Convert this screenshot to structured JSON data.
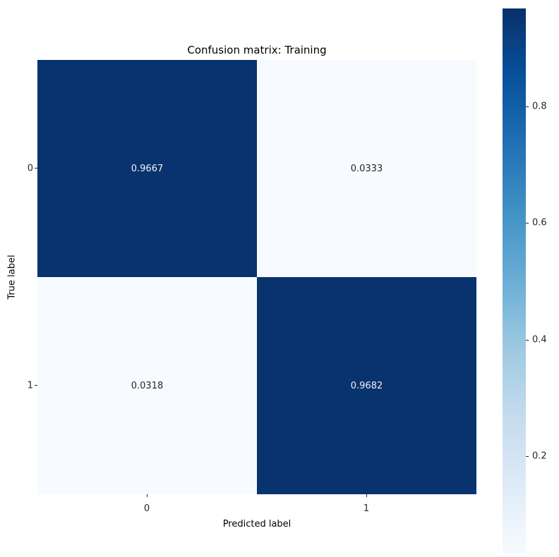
{
  "chart_data": {
    "type": "heatmap",
    "title": "Confusion matrix: Training",
    "xlabel": "Predicted label",
    "ylabel": "True label",
    "x_tick_labels": [
      "0",
      "1"
    ],
    "y_tick_labels": [
      "0",
      "1"
    ],
    "rows": [
      [
        0.9667,
        0.0333
      ],
      [
        0.0318,
        0.9682
      ]
    ],
    "colormap": "Blues",
    "vmin": 0.0318,
    "vmax": 0.9682,
    "colorbar_ticks": [
      0.2,
      0.4,
      0.6,
      0.8
    ],
    "colorbar_position": "right",
    "grid": false,
    "cell_colors": [
      [
        "#09336e",
        "#f7fbff"
      ],
      [
        "#f7fbff",
        "#09336e"
      ]
    ],
    "cell_text_colors": [
      [
        "#f2f2f2",
        "#262626"
      ],
      [
        "#262626",
        "#f2f2f2"
      ]
    ],
    "colorbar_gradient": [
      "#f7fbff",
      "#deebf7",
      "#c6dbef",
      "#9ecae1",
      "#6baed6",
      "#4292c6",
      "#2171b5",
      "#08519c",
      "#08306b"
    ]
  }
}
